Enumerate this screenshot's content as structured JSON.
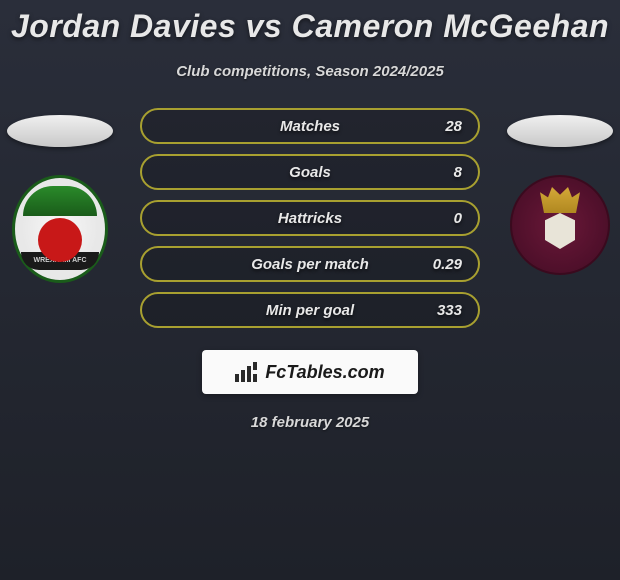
{
  "title": "Jordan Davies vs Cameron McGeehan",
  "subtitle": "Club competitions, Season 2024/2025",
  "date": "18 february 2025",
  "brand": "FcTables.com",
  "colors": {
    "stat_border": "#a8a030",
    "title_text": "#e8e8e8",
    "background_top": "#2a2e3a",
    "background_bottom": "#1e2129",
    "badge_bg": "#fafafa",
    "left_crest_primary": "#1a5c1a",
    "left_crest_accent": "#c81818",
    "right_crest_primary": "#6a1838",
    "right_crest_accent": "#d4a838"
  },
  "stats": [
    {
      "label": "Matches",
      "value": "28"
    },
    {
      "label": "Goals",
      "value": "8"
    },
    {
      "label": "Hattricks",
      "value": "0"
    },
    {
      "label": "Goals per match",
      "value": "0.29"
    },
    {
      "label": "Min per goal",
      "value": "333"
    }
  ],
  "left_club_band": "WREXHAM AFC"
}
